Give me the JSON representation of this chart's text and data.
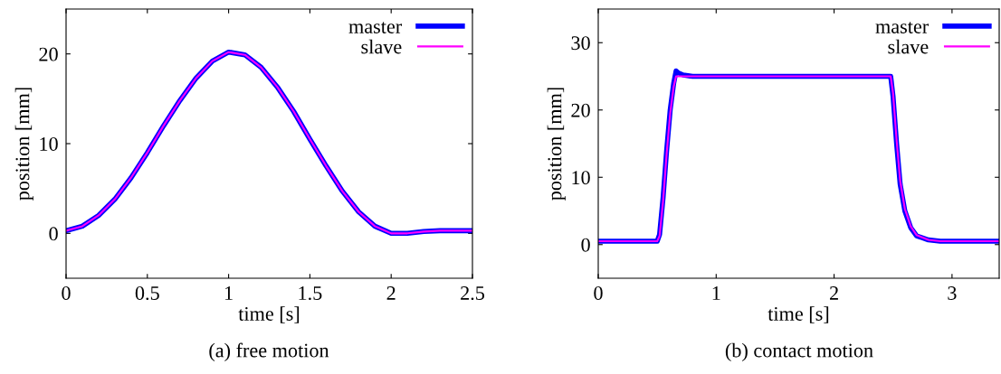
{
  "chart_data": [
    {
      "type": "line",
      "xlabel": "time [s]",
      "ylabel": "position [mm]",
      "xlim": [
        0,
        2.5
      ],
      "ylim": [
        -5,
        25
      ],
      "xticks": [
        0,
        0.5,
        1,
        1.5,
        2,
        2.5
      ],
      "yticks": [
        0,
        10,
        20
      ],
      "legend": "top right",
      "annotations": [
        "(a) free motion"
      ],
      "series": [
        {
          "name": "master",
          "color": "#0000ff",
          "x": [
            0,
            0.1,
            0.2,
            0.3,
            0.4,
            0.5,
            0.6,
            0.7,
            0.8,
            0.9,
            1.0,
            1.1,
            1.2,
            1.3,
            1.4,
            1.5,
            1.6,
            1.7,
            1.8,
            1.9,
            2.0,
            2.1,
            2.2,
            2.3,
            2.4,
            2.5
          ],
          "values": [
            0.3,
            0.8,
            2.0,
            3.8,
            6.2,
            9.0,
            12.0,
            14.8,
            17.3,
            19.2,
            20.2,
            19.9,
            18.5,
            16.3,
            13.6,
            10.5,
            7.5,
            4.7,
            2.4,
            0.8,
            0.0,
            0.0,
            0.2,
            0.3,
            0.3,
            0.3
          ]
        },
        {
          "name": "slave",
          "color": "#ff00ff",
          "x": [
            0,
            0.1,
            0.2,
            0.3,
            0.4,
            0.5,
            0.6,
            0.7,
            0.8,
            0.9,
            1.0,
            1.1,
            1.2,
            1.3,
            1.4,
            1.5,
            1.6,
            1.7,
            1.8,
            1.9,
            2.0,
            2.1,
            2.2,
            2.3,
            2.4,
            2.5
          ],
          "values": [
            0.3,
            0.8,
            2.0,
            3.8,
            6.2,
            9.0,
            12.0,
            14.8,
            17.3,
            19.2,
            20.2,
            19.9,
            18.5,
            16.3,
            13.6,
            10.5,
            7.5,
            4.7,
            2.4,
            0.8,
            0.0,
            0.0,
            0.2,
            0.3,
            0.3,
            0.3
          ]
        }
      ]
    },
    {
      "type": "line",
      "xlabel": "time [s]",
      "ylabel": "position [mm]",
      "xlim": [
        0,
        3.4
      ],
      "ylim": [
        -5,
        35
      ],
      "xticks": [
        0,
        1,
        2,
        3
      ],
      "yticks": [
        0,
        10,
        20,
        30
      ],
      "legend": "top right",
      "annotations": [
        "(b) contact motion"
      ],
      "series": [
        {
          "name": "master",
          "color": "#0000ff",
          "x": [
            0,
            0.5,
            0.52,
            0.55,
            0.58,
            0.61,
            0.64,
            0.66,
            0.68,
            0.72,
            0.8,
            1.5,
            2.45,
            2.48,
            2.5,
            2.53,
            2.56,
            2.6,
            2.65,
            2.7,
            2.8,
            2.9,
            3.0,
            3.4
          ],
          "values": [
            0.5,
            0.5,
            1.5,
            7,
            14,
            20,
            24,
            25.8,
            25.5,
            25.2,
            25,
            25,
            25,
            25,
            22,
            15,
            9,
            5,
            2.5,
            1.3,
            0.7,
            0.5,
            0.5,
            0.5
          ]
        },
        {
          "name": "slave",
          "color": "#ff00ff",
          "x": [
            0,
            0.5,
            0.52,
            0.55,
            0.58,
            0.61,
            0.64,
            0.66,
            0.68,
            0.72,
            0.8,
            1.5,
            2.45,
            2.48,
            2.5,
            2.53,
            2.56,
            2.6,
            2.65,
            2.7,
            2.8,
            2.9,
            3.0,
            3.4
          ],
          "values": [
            0.5,
            0.5,
            1.3,
            6.5,
            13.5,
            19.5,
            23.5,
            25,
            25,
            25,
            25,
            25,
            25,
            25,
            22.5,
            15.5,
            9.5,
            5.3,
            2.7,
            1.4,
            0.7,
            0.5,
            0.5,
            0.5
          ]
        }
      ]
    }
  ]
}
